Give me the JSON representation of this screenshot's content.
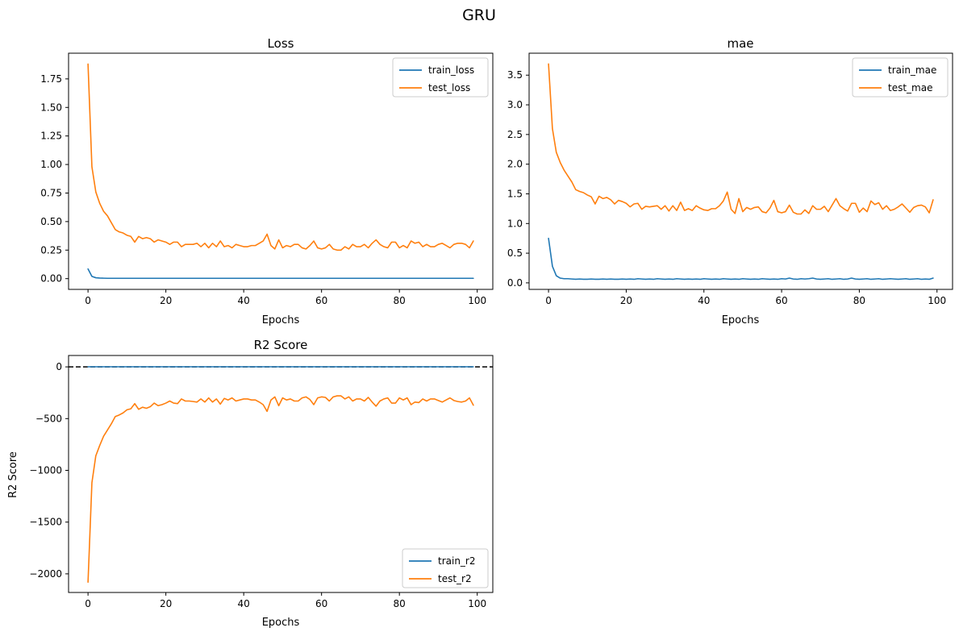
{
  "figure": {
    "suptitle": "GRU"
  },
  "chart_data": [
    {
      "id": "loss",
      "type": "line",
      "title": "Loss",
      "xlabel": "Epochs",
      "ylabel": "",
      "xlim": [
        -5,
        104
      ],
      "ylim": [
        -0.094,
        1.975
      ],
      "xticks": [
        0,
        20,
        40,
        60,
        80,
        100
      ],
      "yticks": [
        0.0,
        0.25,
        0.5,
        0.75,
        1.0,
        1.25,
        1.5,
        1.75
      ],
      "ytick_labels": [
        "0.00",
        "0.25",
        "0.50",
        "0.75",
        "1.00",
        "1.25",
        "1.50",
        "1.75"
      ],
      "legend": {
        "placement": "upper right"
      },
      "grid": false,
      "series": [
        {
          "name": "train_loss",
          "color": "#1f77b4",
          "values": [
            0.085,
            0.02,
            0.008,
            0.005,
            0.004,
            0.003,
            0.003,
            0.003,
            0.003,
            0.003,
            0.003,
            0.003,
            0.003,
            0.003,
            0.003,
            0.003,
            0.003,
            0.003,
            0.003,
            0.003,
            0.003,
            0.003,
            0.003,
            0.003,
            0.003,
            0.003,
            0.003,
            0.003,
            0.003,
            0.003,
            0.003,
            0.003,
            0.003,
            0.003,
            0.003,
            0.003,
            0.003,
            0.003,
            0.003,
            0.003,
            0.003,
            0.003,
            0.003,
            0.003,
            0.003,
            0.003,
            0.003,
            0.003,
            0.003,
            0.003,
            0.003,
            0.003,
            0.003,
            0.003,
            0.003,
            0.003,
            0.003,
            0.003,
            0.003,
            0.003,
            0.003,
            0.003,
            0.003,
            0.003,
            0.003,
            0.003,
            0.003,
            0.003,
            0.003,
            0.003,
            0.003,
            0.003,
            0.003,
            0.003,
            0.003,
            0.003,
            0.003,
            0.003,
            0.003,
            0.003,
            0.003,
            0.003,
            0.003,
            0.003,
            0.003,
            0.003,
            0.003,
            0.003,
            0.003,
            0.003,
            0.003,
            0.003,
            0.003,
            0.003,
            0.003,
            0.003,
            0.003,
            0.003,
            0.003,
            0.003
          ]
        },
        {
          "name": "test_loss",
          "color": "#ff7f0e",
          "values": [
            1.88,
            0.98,
            0.76,
            0.66,
            0.59,
            0.55,
            0.49,
            0.43,
            0.41,
            0.4,
            0.38,
            0.37,
            0.32,
            0.37,
            0.35,
            0.36,
            0.35,
            0.32,
            0.34,
            0.33,
            0.32,
            0.3,
            0.32,
            0.32,
            0.28,
            0.3,
            0.3,
            0.3,
            0.31,
            0.28,
            0.31,
            0.27,
            0.31,
            0.28,
            0.33,
            0.28,
            0.29,
            0.27,
            0.3,
            0.29,
            0.28,
            0.28,
            0.29,
            0.29,
            0.31,
            0.33,
            0.39,
            0.29,
            0.26,
            0.34,
            0.27,
            0.29,
            0.28,
            0.3,
            0.3,
            0.27,
            0.26,
            0.29,
            0.33,
            0.27,
            0.26,
            0.27,
            0.3,
            0.26,
            0.25,
            0.25,
            0.28,
            0.26,
            0.3,
            0.28,
            0.28,
            0.3,
            0.27,
            0.31,
            0.34,
            0.3,
            0.28,
            0.27,
            0.32,
            0.32,
            0.27,
            0.29,
            0.27,
            0.33,
            0.31,
            0.32,
            0.28,
            0.3,
            0.28,
            0.28,
            0.3,
            0.31,
            0.29,
            0.27,
            0.3,
            0.31,
            0.31,
            0.3,
            0.27,
            0.33
          ]
        }
      ]
    },
    {
      "id": "mae",
      "type": "line",
      "title": "mae",
      "xlabel": "Epochs",
      "ylabel": "",
      "xlim": [
        -5,
        104
      ],
      "ylim": [
        -0.11,
        3.87
      ],
      "xticks": [
        0,
        20,
        40,
        60,
        80,
        100
      ],
      "yticks": [
        0.0,
        0.5,
        1.0,
        1.5,
        2.0,
        2.5,
        3.0,
        3.5
      ],
      "ytick_labels": [
        "0.0",
        "0.5",
        "1.0",
        "1.5",
        "2.0",
        "2.5",
        "3.0",
        "3.5"
      ],
      "legend": {
        "placement": "upper right"
      },
      "grid": false,
      "series": [
        {
          "name": "train_mae",
          "color": "#1f77b4",
          "values": [
            0.75,
            0.28,
            0.12,
            0.08,
            0.07,
            0.07,
            0.065,
            0.06,
            0.065,
            0.06,
            0.06,
            0.065,
            0.06,
            0.06,
            0.065,
            0.06,
            0.065,
            0.06,
            0.06,
            0.065,
            0.06,
            0.065,
            0.06,
            0.07,
            0.065,
            0.06,
            0.065,
            0.06,
            0.07,
            0.065,
            0.06,
            0.065,
            0.06,
            0.07,
            0.065,
            0.06,
            0.065,
            0.06,
            0.065,
            0.06,
            0.07,
            0.065,
            0.06,
            0.065,
            0.06,
            0.07,
            0.065,
            0.06,
            0.065,
            0.06,
            0.07,
            0.065,
            0.06,
            0.065,
            0.06,
            0.07,
            0.065,
            0.06,
            0.065,
            0.06,
            0.07,
            0.065,
            0.08,
            0.065,
            0.06,
            0.07,
            0.065,
            0.07,
            0.08,
            0.065,
            0.06,
            0.065,
            0.07,
            0.06,
            0.065,
            0.07,
            0.06,
            0.065,
            0.08,
            0.065,
            0.06,
            0.065,
            0.07,
            0.06,
            0.065,
            0.07,
            0.06,
            0.065,
            0.07,
            0.065,
            0.06,
            0.065,
            0.07,
            0.06,
            0.065,
            0.07,
            0.06,
            0.065,
            0.06,
            0.08
          ]
        },
        {
          "name": "test_mae",
          "color": "#ff7f0e",
          "values": [
            3.69,
            2.6,
            2.2,
            2.03,
            1.9,
            1.8,
            1.7,
            1.57,
            1.54,
            1.52,
            1.48,
            1.45,
            1.33,
            1.46,
            1.42,
            1.44,
            1.4,
            1.33,
            1.39,
            1.37,
            1.34,
            1.28,
            1.33,
            1.34,
            1.24,
            1.29,
            1.28,
            1.29,
            1.3,
            1.24,
            1.3,
            1.21,
            1.3,
            1.22,
            1.36,
            1.22,
            1.25,
            1.22,
            1.3,
            1.26,
            1.23,
            1.22,
            1.25,
            1.25,
            1.3,
            1.38,
            1.53,
            1.24,
            1.17,
            1.42,
            1.2,
            1.27,
            1.24,
            1.27,
            1.28,
            1.2,
            1.18,
            1.26,
            1.39,
            1.2,
            1.18,
            1.2,
            1.31,
            1.19,
            1.16,
            1.16,
            1.23,
            1.17,
            1.3,
            1.24,
            1.24,
            1.29,
            1.2,
            1.31,
            1.42,
            1.3,
            1.25,
            1.21,
            1.34,
            1.34,
            1.19,
            1.26,
            1.2,
            1.38,
            1.32,
            1.35,
            1.24,
            1.3,
            1.22,
            1.24,
            1.28,
            1.33,
            1.26,
            1.19,
            1.27,
            1.3,
            1.31,
            1.28,
            1.18,
            1.4
          ]
        }
      ]
    },
    {
      "id": "r2",
      "type": "line",
      "title": "R2 Score",
      "xlabel": "Epochs",
      "ylabel": "R2 Score",
      "xlim": [
        -5,
        104
      ],
      "ylim": [
        -2180,
        110
      ],
      "xticks": [
        0,
        20,
        40,
        60,
        80,
        100
      ],
      "yticks": [
        0,
        -500,
        -1000,
        -1500,
        -2000
      ],
      "ytick_labels": [
        "0",
        "−500",
        "−1000",
        "−1500",
        "−2000"
      ],
      "legend": {
        "placement": "lower right"
      },
      "grid": false,
      "reference_lines": [
        {
          "y": 0,
          "style": "dashed",
          "color": "#000000"
        }
      ],
      "series": [
        {
          "name": "train_r2",
          "color": "#1f77b4",
          "values": [
            0.9,
            0.97,
            0.99,
            0.99,
            0.99,
            0.99,
            0.99,
            0.99,
            0.99,
            0.99,
            0.99,
            0.99,
            0.99,
            0.99,
            0.99,
            0.99,
            0.99,
            0.99,
            0.99,
            0.99,
            0.99,
            0.99,
            0.99,
            0.99,
            0.99,
            0.99,
            0.99,
            0.99,
            0.99,
            0.99,
            0.99,
            0.99,
            0.99,
            0.99,
            0.99,
            0.99,
            0.99,
            0.99,
            0.99,
            0.99,
            0.99,
            0.99,
            0.99,
            0.99,
            0.99,
            0.99,
            0.99,
            0.99,
            0.99,
            0.99,
            0.99,
            0.99,
            0.99,
            0.99,
            0.99,
            0.99,
            0.99,
            0.99,
            0.99,
            0.99,
            0.99,
            0.99,
            0.99,
            0.99,
            0.99,
            0.99,
            0.99,
            0.99,
            0.99,
            0.99,
            0.99,
            0.99,
            0.99,
            0.99,
            0.99,
            0.99,
            0.99,
            0.99,
            0.99,
            0.99,
            0.99,
            0.99,
            0.99,
            0.99,
            0.99,
            0.99,
            0.99,
            0.99,
            0.99,
            0.99,
            0.99,
            0.99,
            0.99,
            0.99,
            0.99,
            0.99,
            0.99,
            0.99,
            0.99,
            0.99
          ]
        },
        {
          "name": "test_r2",
          "color": "#ff7f0e",
          "values": [
            -2080,
            -1120,
            -860,
            -760,
            -670,
            -610,
            -550,
            -480,
            -465,
            -445,
            -415,
            -405,
            -355,
            -410,
            -390,
            -400,
            -385,
            -350,
            -375,
            -365,
            -350,
            -330,
            -350,
            -355,
            -310,
            -330,
            -330,
            -335,
            -340,
            -310,
            -340,
            -300,
            -340,
            -310,
            -360,
            -305,
            -320,
            -300,
            -330,
            -320,
            -310,
            -310,
            -320,
            -320,
            -340,
            -365,
            -430,
            -320,
            -290,
            -375,
            -300,
            -320,
            -310,
            -330,
            -330,
            -300,
            -290,
            -315,
            -365,
            -300,
            -290,
            -295,
            -330,
            -290,
            -280,
            -280,
            -310,
            -290,
            -330,
            -310,
            -310,
            -330,
            -295,
            -340,
            -380,
            -330,
            -310,
            -300,
            -350,
            -350,
            -300,
            -320,
            -300,
            -365,
            -340,
            -345,
            -310,
            -330,
            -310,
            -310,
            -325,
            -340,
            -320,
            -300,
            -325,
            -335,
            -340,
            -330,
            -300,
            -370
          ]
        }
      ]
    }
  ]
}
